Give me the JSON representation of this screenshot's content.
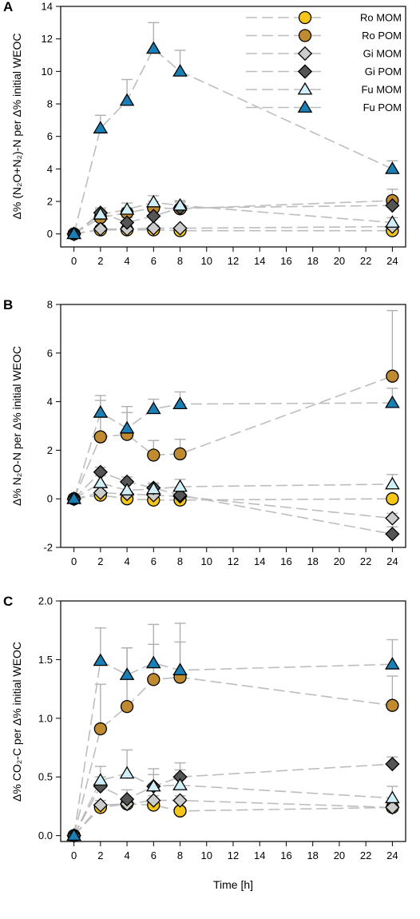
{
  "chart_data": [
    {
      "type": "line",
      "panel_label": "A",
      "ylabel": "Δ% (N₂O+N₂)-N per Δ% initial WEOC",
      "xlabel": "",
      "xlim": [
        -1,
        25
      ],
      "ylim": [
        -0.8,
        14
      ],
      "xticks": [
        0,
        2,
        4,
        6,
        8,
        10,
        12,
        14,
        16,
        18,
        20,
        22,
        24
      ],
      "yticks": [
        0,
        2,
        4,
        6,
        8,
        10,
        12,
        14
      ],
      "legend": "top-right",
      "x": [
        0,
        2,
        4,
        6,
        8,
        24
      ],
      "series": [
        {
          "name": "Ro MOM",
          "marker": "circle",
          "color": "#f5c518",
          "values": [
            0,
            0.25,
            0.25,
            0.25,
            0.2,
            0.2
          ],
          "err": [
            0,
            0.1,
            0.1,
            0.1,
            0.1,
            0.1
          ]
        },
        {
          "name": "Ro POM",
          "marker": "circle",
          "color": "#bf8a30",
          "values": [
            0,
            1.0,
            1.3,
            1.6,
            1.55,
            2.05
          ],
          "err": [
            0,
            0.2,
            0.3,
            0.4,
            0.4,
            0.7
          ]
        },
        {
          "name": "Gi MOM",
          "marker": "diamond",
          "color": "#cccccc",
          "values": [
            0,
            0.3,
            0.3,
            0.35,
            0.35,
            0.45
          ],
          "err": [
            0,
            0.1,
            0.15,
            0.15,
            0.1,
            0.1
          ]
        },
        {
          "name": "Gi POM",
          "marker": "diamond",
          "color": "#555555",
          "values": [
            0,
            1.3,
            0.7,
            1.1,
            1.6,
            1.75
          ],
          "err": [
            0,
            0.3,
            0.3,
            0.5,
            0.4,
            0.5
          ]
        },
        {
          "name": "Fu MOM",
          "marker": "triangle",
          "color": "#cfeef8",
          "values": [
            0,
            1.2,
            1.5,
            1.95,
            1.75,
            0.7
          ],
          "err": [
            0,
            0.3,
            0.4,
            0.4,
            0.3,
            0.3
          ]
        },
        {
          "name": "Fu POM",
          "marker": "triangle",
          "color": "#1a7fb5",
          "values": [
            0,
            6.5,
            8.2,
            11.4,
            10.0,
            4.0
          ],
          "err": [
            0,
            0.8,
            1.3,
            1.6,
            1.3,
            0.5
          ]
        }
      ]
    },
    {
      "type": "line",
      "panel_label": "B",
      "ylabel": "Δ% N₂O-N per Δ% initial WEOC",
      "xlabel": "",
      "xlim": [
        -1,
        25
      ],
      "ylim": [
        -2,
        8
      ],
      "xticks": [
        0,
        2,
        4,
        6,
        8,
        10,
        12,
        14,
        16,
        18,
        20,
        22,
        24
      ],
      "yticks": [
        -2,
        0,
        2,
        4,
        6,
        8
      ],
      "legend": "none",
      "x": [
        0,
        2,
        4,
        6,
        8,
        24
      ],
      "series": [
        {
          "name": "Ro MOM",
          "marker": "circle",
          "color": "#f5c518",
          "values": [
            0,
            0.15,
            0.0,
            -0.05,
            -0.05,
            0.0
          ],
          "err": [
            0,
            0.1,
            0.1,
            0.1,
            0.1,
            0.1
          ]
        },
        {
          "name": "Ro POM",
          "marker": "circle",
          "color": "#bf8a30",
          "values": [
            0,
            2.55,
            2.65,
            1.8,
            1.85,
            5.05
          ],
          "err": [
            0,
            1.5,
            0.9,
            0.6,
            0.6,
            2.7
          ]
        },
        {
          "name": "Gi MOM",
          "marker": "diamond",
          "color": "#cccccc",
          "values": [
            0,
            0.25,
            0.2,
            0.15,
            0.1,
            -0.8
          ],
          "err": [
            0,
            0.1,
            0.1,
            0.1,
            0.1,
            0.2
          ]
        },
        {
          "name": "Gi POM",
          "marker": "diamond",
          "color": "#555555",
          "values": [
            0,
            1.1,
            0.7,
            0.45,
            0.15,
            -1.45
          ],
          "err": [
            0,
            0.2,
            0.2,
            0.2,
            0.2,
            0.3
          ]
        },
        {
          "name": "Fu MOM",
          "marker": "triangle",
          "color": "#cfeef8",
          "values": [
            0,
            0.65,
            0.35,
            0.4,
            0.5,
            0.6
          ],
          "err": [
            0,
            0.3,
            0.3,
            0.2,
            0.3,
            0.4
          ]
        },
        {
          "name": "Fu POM",
          "marker": "triangle",
          "color": "#1a7fb5",
          "values": [
            0,
            3.55,
            2.9,
            3.7,
            3.9,
            3.95
          ],
          "err": [
            0,
            0.7,
            0.9,
            0.4,
            0.5,
            0.6
          ]
        }
      ]
    },
    {
      "type": "line",
      "panel_label": "C",
      "ylabel": "Δ% CO₂-C per Δ% initial WEOC",
      "xlabel": "Time [h]",
      "xlim": [
        -1,
        25
      ],
      "ylim": [
        -0.05,
        2.0
      ],
      "xticks": [
        0,
        2,
        4,
        6,
        8,
        10,
        12,
        14,
        16,
        18,
        20,
        22,
        24
      ],
      "yticks": [
        "0.0",
        "0.5",
        "1.0",
        "1.5",
        "2.0"
      ],
      "legend": "none",
      "x": [
        0,
        2,
        4,
        6,
        8,
        24
      ],
      "series": [
        {
          "name": "Ro MOM",
          "marker": "circle",
          "color": "#f5c518",
          "values": [
            0,
            0.24,
            0.27,
            0.26,
            0.21,
            0.24
          ],
          "err": [
            0,
            0.03,
            0.03,
            0.03,
            0.03,
            0.03
          ]
        },
        {
          "name": "Ro POM",
          "marker": "circle",
          "color": "#bf8a30",
          "values": [
            0,
            0.91,
            1.1,
            1.33,
            1.35,
            1.11
          ],
          "err": [
            0,
            0.38,
            0.5,
            0.3,
            0.3,
            0.25
          ]
        },
        {
          "name": "Gi MOM",
          "marker": "diamond",
          "color": "#cccccc",
          "values": [
            0,
            0.26,
            0.27,
            0.3,
            0.3,
            0.24
          ],
          "err": [
            0,
            0.04,
            0.04,
            0.04,
            0.04,
            0.04
          ]
        },
        {
          "name": "Gi POM",
          "marker": "diamond",
          "color": "#555555",
          "values": [
            0,
            0.42,
            0.31,
            0.42,
            0.5,
            0.61
          ],
          "err": [
            0,
            0.08,
            0.08,
            0.1,
            0.12,
            0.06
          ]
        },
        {
          "name": "Fu MOM",
          "marker": "triangle",
          "color": "#cfeef8",
          "values": [
            0,
            0.47,
            0.53,
            0.42,
            0.43,
            0.32
          ],
          "err": [
            0,
            0.12,
            0.2,
            0.15,
            0.13,
            0.1
          ]
        },
        {
          "name": "Fu POM",
          "marker": "triangle",
          "color": "#1a7fb5",
          "values": [
            0,
            1.49,
            1.37,
            1.47,
            1.41,
            1.46
          ],
          "err": [
            0,
            0.28,
            0.23,
            0.33,
            0.4,
            0.21
          ]
        }
      ]
    }
  ]
}
